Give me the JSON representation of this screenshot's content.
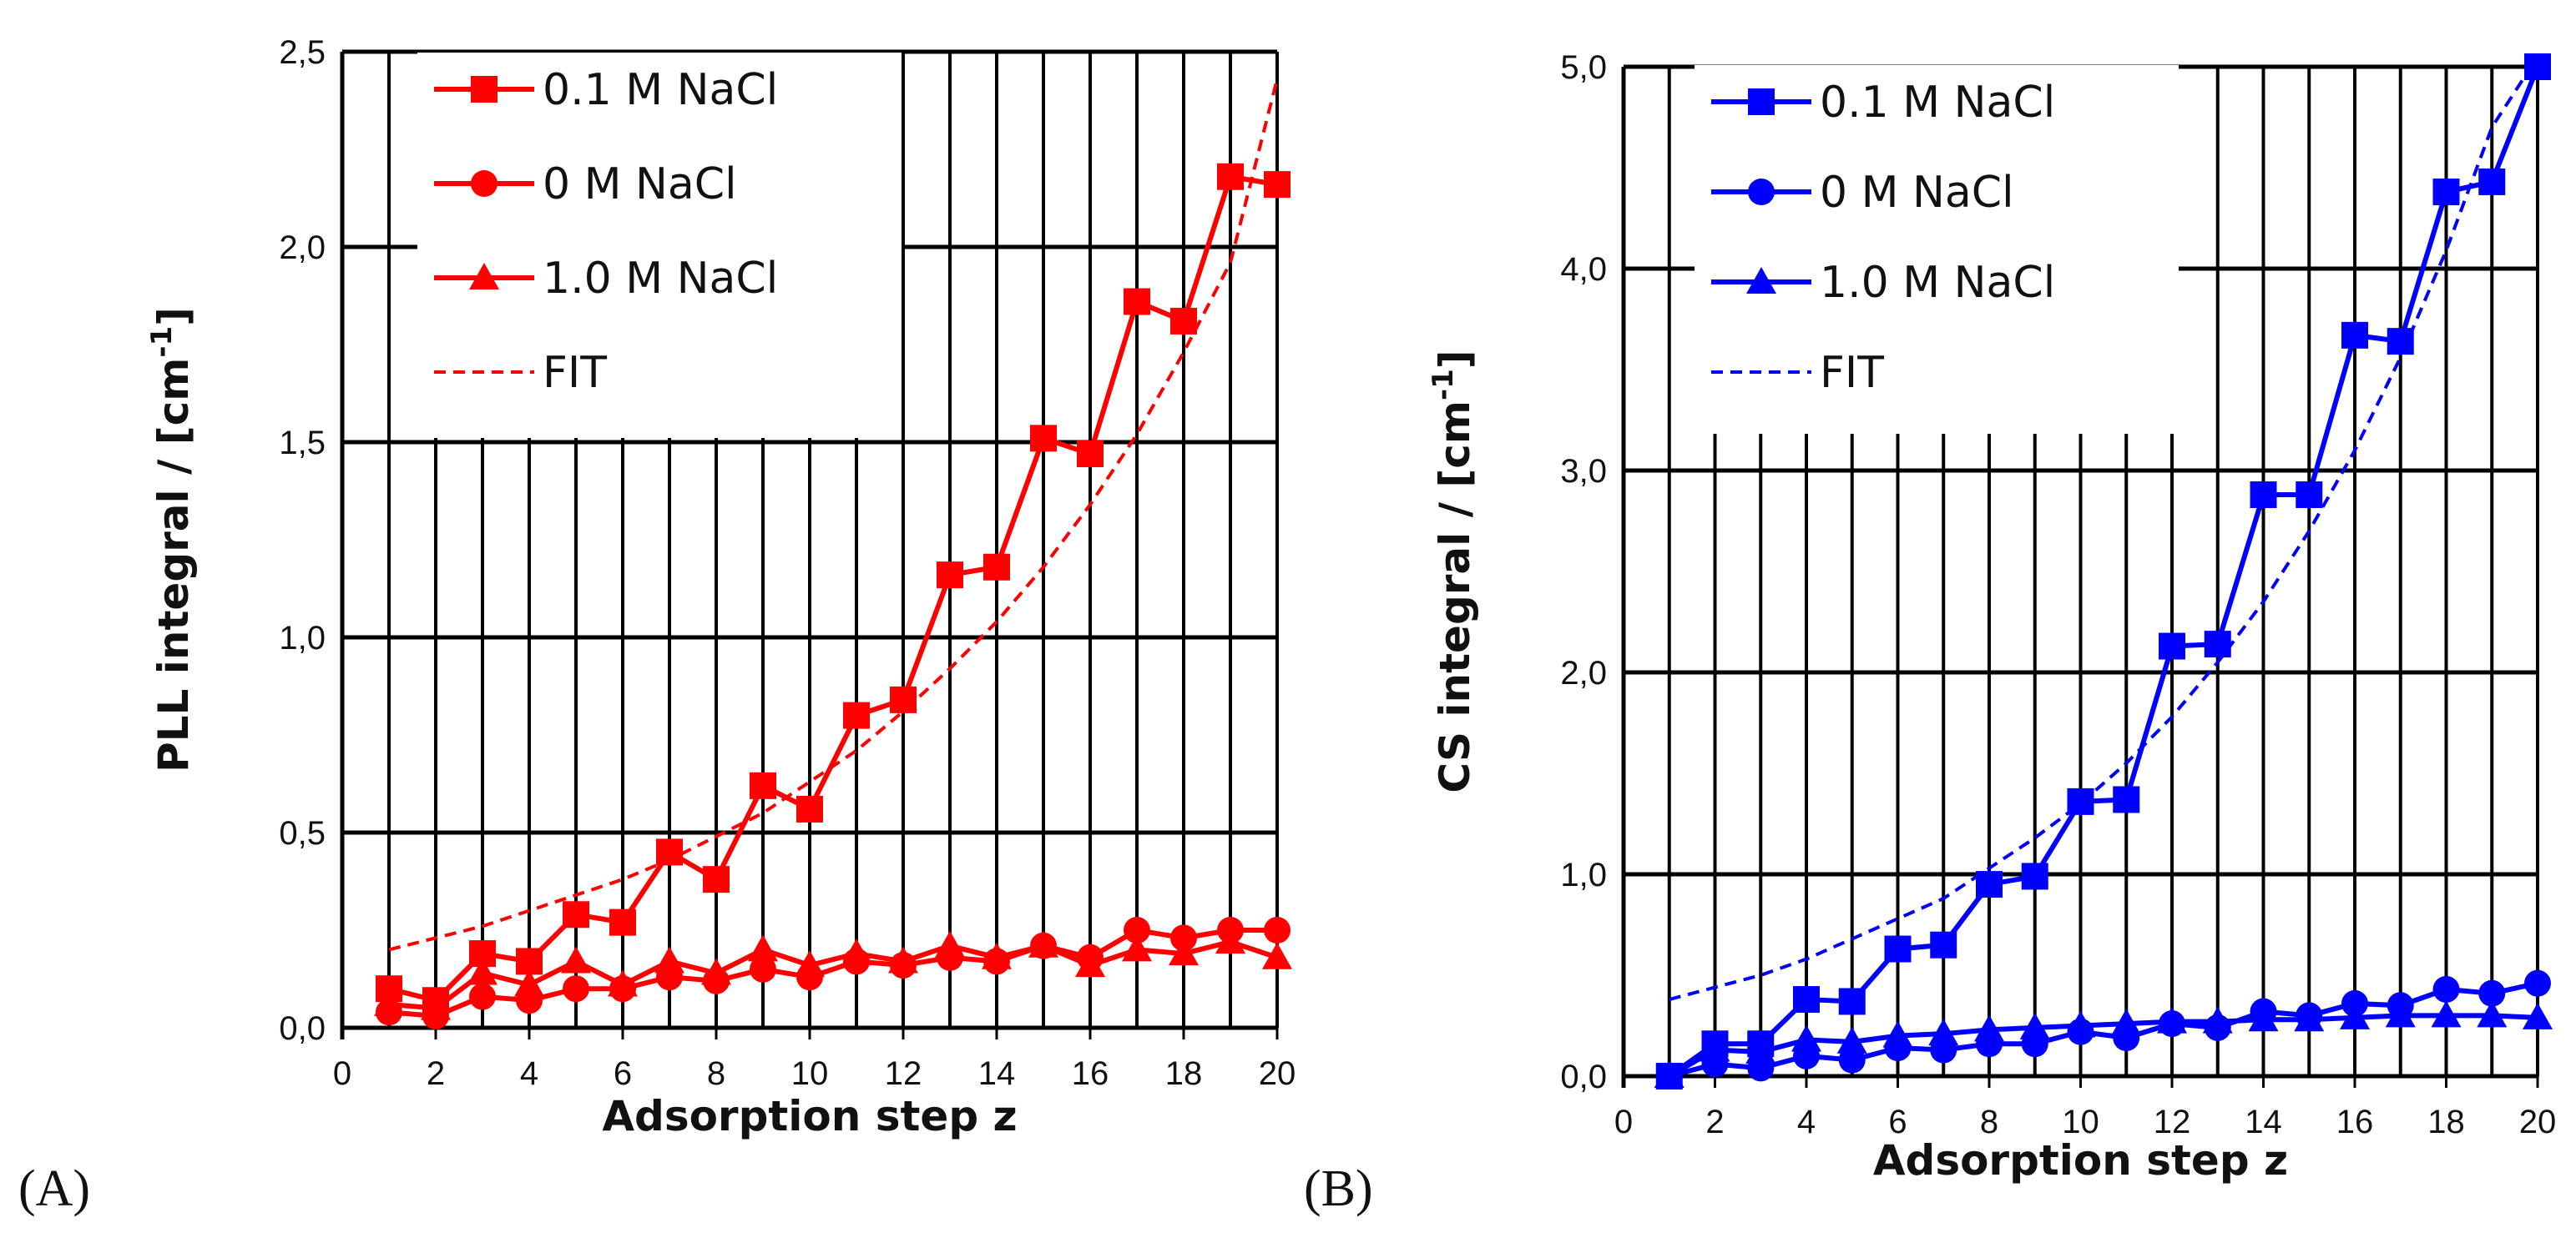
{
  "chart_data": [
    {
      "type": "line",
      "panel_label": "(A)",
      "color": "#ff0000",
      "xlabel": "Adsorption step z",
      "ylabel": "PLL integral / [cm",
      "ylabel_sup": "-1",
      "ylabel_end": "]",
      "xlim": [
        0,
        20
      ],
      "ylim": [
        0,
        2.5
      ],
      "xticks": [
        0,
        2,
        4,
        6,
        8,
        10,
        12,
        14,
        16,
        18,
        20
      ],
      "xtick_labels": [
        "0",
        "2",
        "4",
        "6",
        "8",
        "10",
        "12",
        "14",
        "16",
        "18",
        "20"
      ],
      "yticks": [
        0,
        0.5,
        1.0,
        1.5,
        2.0,
        2.5
      ],
      "ytick_labels": [
        "0,0",
        "0,5",
        "1,0",
        "1,5",
        "2,0",
        "2,5"
      ],
      "legend_position": "top-left",
      "series": [
        {
          "name": "0.1 M NaCl",
          "marker": "square",
          "x": [
            1,
            2,
            3,
            4,
            5,
            6,
            7,
            8,
            9,
            10,
            11,
            12,
            13,
            14,
            15,
            16,
            17,
            18,
            19,
            20
          ],
          "y": [
            0.1,
            0.07,
            0.19,
            0.17,
            0.29,
            0.27,
            0.45,
            0.38,
            0.62,
            0.56,
            0.8,
            0.84,
            1.16,
            1.18,
            1.51,
            1.47,
            1.86,
            1.81,
            2.18,
            2.16
          ]
        },
        {
          "name": "0 M NaCl",
          "marker": "circle",
          "x": [
            1,
            2,
            3,
            4,
            5,
            6,
            7,
            8,
            9,
            10,
            11,
            12,
            13,
            14,
            15,
            16,
            17,
            18,
            19,
            20
          ],
          "y": [
            0.04,
            0.03,
            0.08,
            0.07,
            0.1,
            0.1,
            0.13,
            0.12,
            0.15,
            0.13,
            0.17,
            0.16,
            0.18,
            0.17,
            0.21,
            0.18,
            0.25,
            0.23,
            0.25,
            0.25
          ]
        },
        {
          "name": "1.0 M NaCl",
          "marker": "triangle",
          "x": [
            1,
            2,
            3,
            4,
            5,
            6,
            7,
            8,
            9,
            10,
            11,
            12,
            13,
            14,
            15,
            16,
            17,
            18,
            19,
            20
          ],
          "y": [
            0.06,
            0.05,
            0.14,
            0.11,
            0.17,
            0.11,
            0.17,
            0.14,
            0.2,
            0.16,
            0.19,
            0.17,
            0.21,
            0.18,
            0.21,
            0.16,
            0.2,
            0.19,
            0.22,
            0.18
          ]
        },
        {
          "name": "FIT",
          "marker": "none",
          "dashed": true,
          "x": [
            1,
            2,
            3,
            4,
            5,
            6,
            7,
            8,
            9,
            10,
            11,
            12,
            13,
            14,
            15,
            16,
            17,
            18,
            19,
            20
          ],
          "y": [
            0.2,
            0.23,
            0.26,
            0.3,
            0.34,
            0.38,
            0.43,
            0.49,
            0.55,
            0.63,
            0.71,
            0.81,
            0.92,
            1.04,
            1.18,
            1.34,
            1.52,
            1.73,
            1.96,
            2.43
          ]
        }
      ]
    },
    {
      "type": "line",
      "panel_label": "(B)",
      "color": "#0000ff",
      "xlabel": "Adsorption step z",
      "ylabel": "CS integral / [cm",
      "ylabel_sup": "-1",
      "ylabel_end": "]",
      "xlim": [
        0,
        20
      ],
      "ylim": [
        0,
        5.0
      ],
      "xticks": [
        0,
        2,
        4,
        6,
        8,
        10,
        12,
        14,
        16,
        18,
        20
      ],
      "xtick_labels": [
        "0",
        "2",
        "4",
        "6",
        "8",
        "10",
        "12",
        "14",
        "16",
        "18",
        "20"
      ],
      "yticks": [
        0,
        1.0,
        2.0,
        3.0,
        4.0,
        5.0
      ],
      "ytick_labels": [
        "0,0",
        "1,0",
        "2,0",
        "3,0",
        "4,0",
        "5,0"
      ],
      "legend_position": "top-left",
      "series": [
        {
          "name": "0.1 M NaCl",
          "marker": "square",
          "x": [
            1,
            2,
            3,
            4,
            5,
            6,
            7,
            8,
            9,
            10,
            11,
            12,
            13,
            14,
            15,
            16,
            17,
            18,
            19,
            20
          ],
          "y": [
            0.0,
            0.16,
            0.16,
            0.38,
            0.37,
            0.63,
            0.65,
            0.95,
            0.99,
            1.36,
            1.37,
            2.13,
            2.14,
            2.88,
            2.88,
            3.67,
            3.64,
            4.38,
            4.43,
            5.0
          ]
        },
        {
          "name": "0 M NaCl",
          "marker": "circle",
          "x": [
            1,
            2,
            3,
            4,
            5,
            6,
            7,
            8,
            9,
            10,
            11,
            12,
            13,
            14,
            15,
            16,
            17,
            18,
            19,
            20
          ],
          "y": [
            0.0,
            0.06,
            0.04,
            0.1,
            0.08,
            0.14,
            0.13,
            0.16,
            0.16,
            0.22,
            0.19,
            0.26,
            0.24,
            0.32,
            0.3,
            0.36,
            0.35,
            0.43,
            0.41,
            0.46
          ]
        },
        {
          "name": "1.0 M NaCl",
          "marker": "triangle",
          "x": [
            1,
            2,
            3,
            4,
            5,
            6,
            7,
            8,
            9,
            10,
            11,
            12,
            13,
            14,
            15,
            16,
            17,
            18,
            19,
            20
          ],
          "y": [
            0.0,
            0.13,
            0.12,
            0.18,
            0.17,
            0.2,
            0.21,
            0.23,
            0.24,
            0.25,
            0.26,
            0.27,
            0.27,
            0.28,
            0.28,
            0.29,
            0.3,
            0.3,
            0.3,
            0.29
          ]
        },
        {
          "name": "FIT",
          "marker": "none",
          "dashed": true,
          "x": [
            1,
            2,
            3,
            4,
            5,
            6,
            7,
            8,
            9,
            10,
            11,
            12,
            13,
            14,
            15,
            16,
            17,
            18,
            19,
            20
          ],
          "y": [
            0.38,
            0.44,
            0.5,
            0.58,
            0.68,
            0.78,
            0.88,
            1.03,
            1.18,
            1.35,
            1.55,
            1.78,
            2.05,
            2.35,
            2.7,
            3.1,
            3.56,
            4.09,
            4.7,
            5.05
          ]
        }
      ]
    }
  ]
}
